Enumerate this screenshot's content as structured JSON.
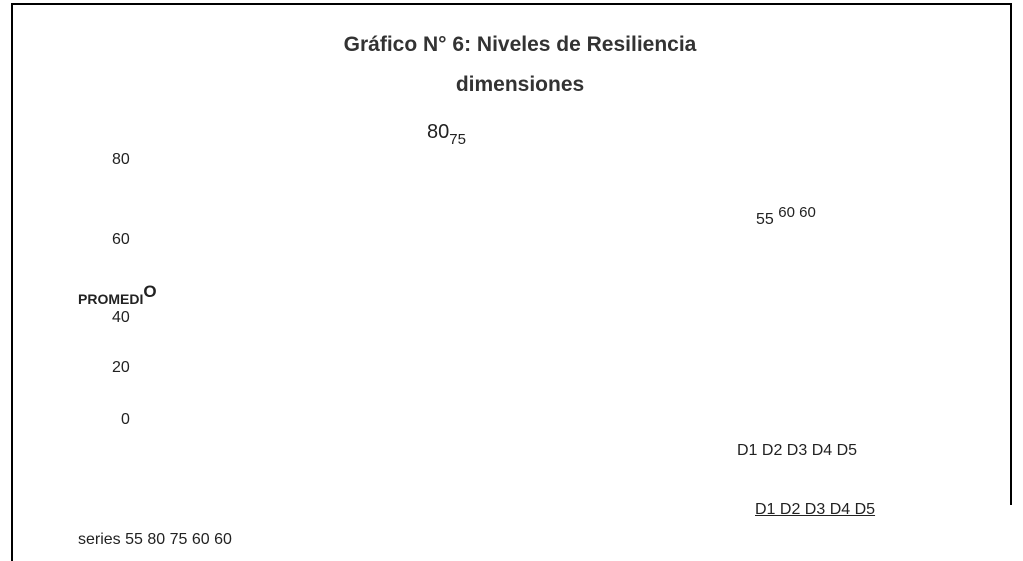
{
  "title": {
    "line1": "Gráfico N° 6: Niveles de Resiliencia",
    "line2": "dimensiones"
  },
  "top_label": {
    "main": "80",
    "sub": "75"
  },
  "axis_labels": [
    "80",
    "60",
    "40",
    "20",
    "0"
  ],
  "axis_title": {
    "main": "PROMEDI",
    "sup": "O"
  },
  "right_label": {
    "main": "55",
    "sup": "60 60"
  },
  "categories": "D1 D2 D3 D4 D5",
  "legend": "D1 D2 D3 D4 D5",
  "series_text": "series 55 80 75 60 60"
}
